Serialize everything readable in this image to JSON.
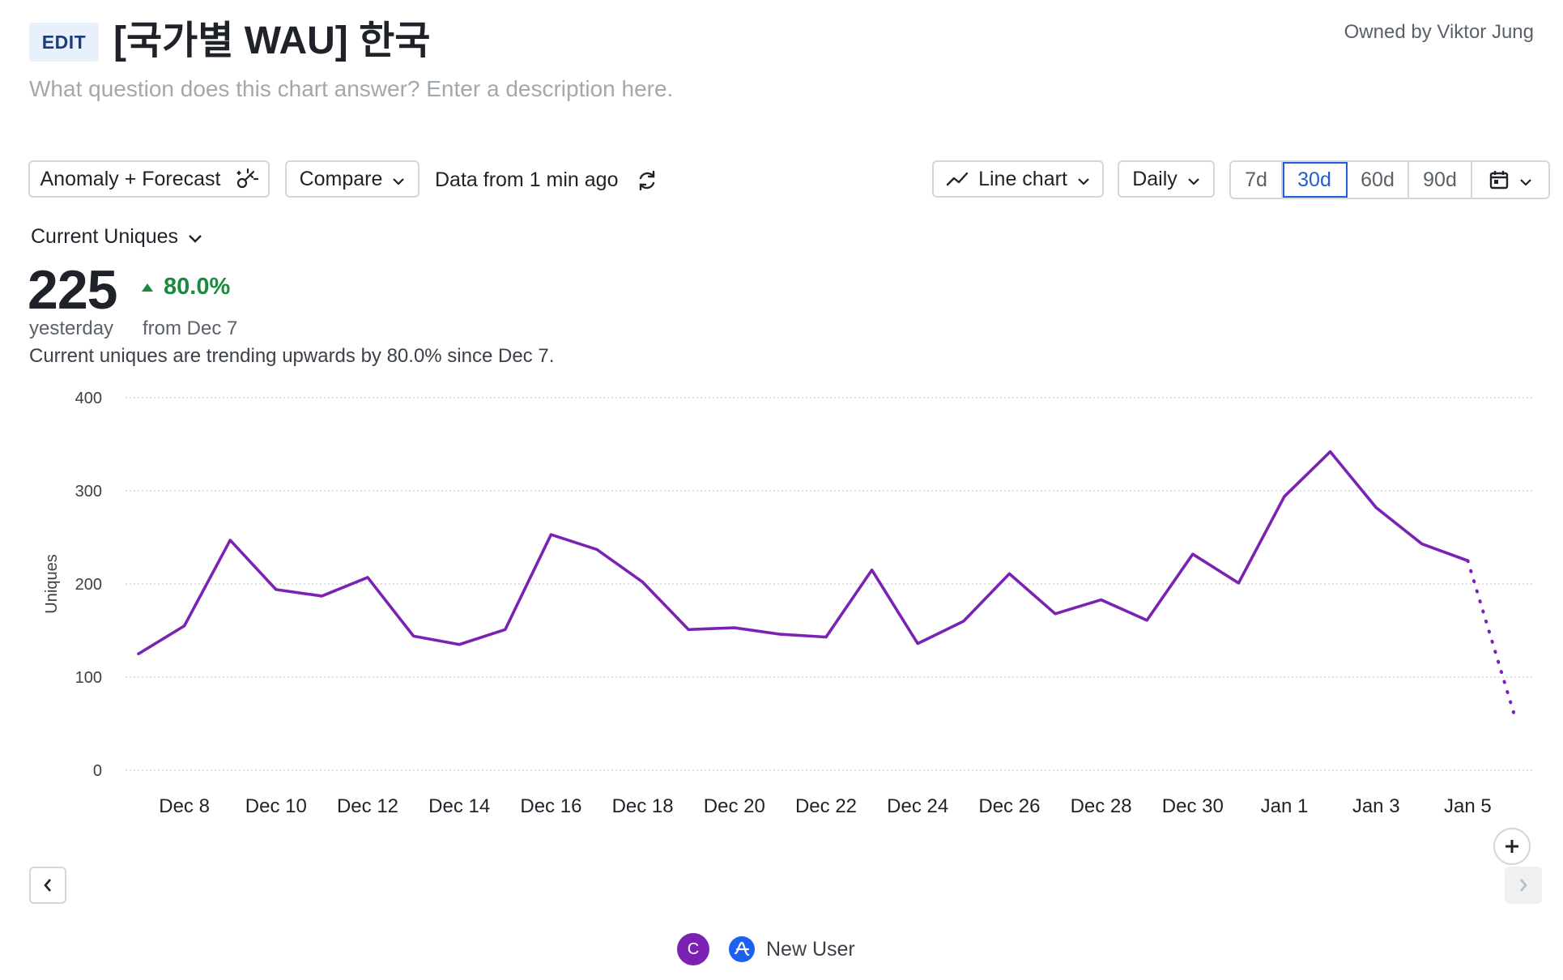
{
  "header": {
    "edit_label": "EDIT",
    "title": "[국가별 WAU] 한국",
    "owner": "Owned by Viktor Jung",
    "description_placeholder": "What question does this chart answer? Enter a description here."
  },
  "toolbar": {
    "anomaly_label": "Anomaly + Forecast",
    "compare_label": "Compare",
    "data_freshness": "Data from 1 min ago",
    "chart_type_label": "Line chart",
    "interval_label": "Daily",
    "ranges": [
      "7d",
      "30d",
      "60d",
      "90d"
    ],
    "active_range": "30d"
  },
  "metric": {
    "selector_label": "Current Uniques",
    "value": "225",
    "value_caption": "yesterday",
    "change": "80.0%",
    "change_caption": "from Dec 7",
    "trend_text": "Current uniques are trending upwards by 80.0% since Dec 7."
  },
  "colors": {
    "series": "#7b22b4",
    "accent": "#1f5fd6",
    "positive": "#1a8a3e"
  },
  "chart_data": {
    "type": "line",
    "ylabel": "Uniques",
    "ylim": [
      0,
      400
    ],
    "yticks": [
      0,
      100,
      200,
      300,
      400
    ],
    "xticks": [
      "Dec 8",
      "Dec 10",
      "Dec 12",
      "Dec 14",
      "Dec 16",
      "Dec 18",
      "Dec 20",
      "Dec 22",
      "Dec 24",
      "Dec 26",
      "Dec 28",
      "Dec 30",
      "Jan 1",
      "Jan 3",
      "Jan 5"
    ],
    "x": [
      "Dec 7",
      "Dec 8",
      "Dec 9",
      "Dec 10",
      "Dec 11",
      "Dec 12",
      "Dec 13",
      "Dec 14",
      "Dec 15",
      "Dec 16",
      "Dec 17",
      "Dec 18",
      "Dec 19",
      "Dec 20",
      "Dec 21",
      "Dec 22",
      "Dec 23",
      "Dec 24",
      "Dec 25",
      "Dec 26",
      "Dec 27",
      "Dec 28",
      "Dec 29",
      "Dec 30",
      "Dec 31",
      "Jan 1",
      "Jan 2",
      "Jan 3",
      "Jan 4",
      "Jan 5",
      "Jan 6"
    ],
    "series": [
      {
        "values": [
          125,
          155,
          247,
          194,
          187,
          207,
          144,
          135,
          151,
          253,
          237,
          202,
          151,
          153,
          146,
          143,
          215,
          136,
          160,
          211,
          168,
          183,
          161,
          232,
          201,
          294,
          342,
          282,
          243,
          225,
          null
        ],
        "forecast": [
          null,
          null,
          null,
          null,
          null,
          null,
          null,
          null,
          null,
          null,
          null,
          null,
          null,
          null,
          null,
          null,
          null,
          null,
          null,
          null,
          null,
          null,
          null,
          null,
          null,
          null,
          null,
          null,
          null,
          225,
          62
        ]
      }
    ],
    "grid": true
  },
  "legend": {
    "badge_letter": "C",
    "label": "New User"
  }
}
